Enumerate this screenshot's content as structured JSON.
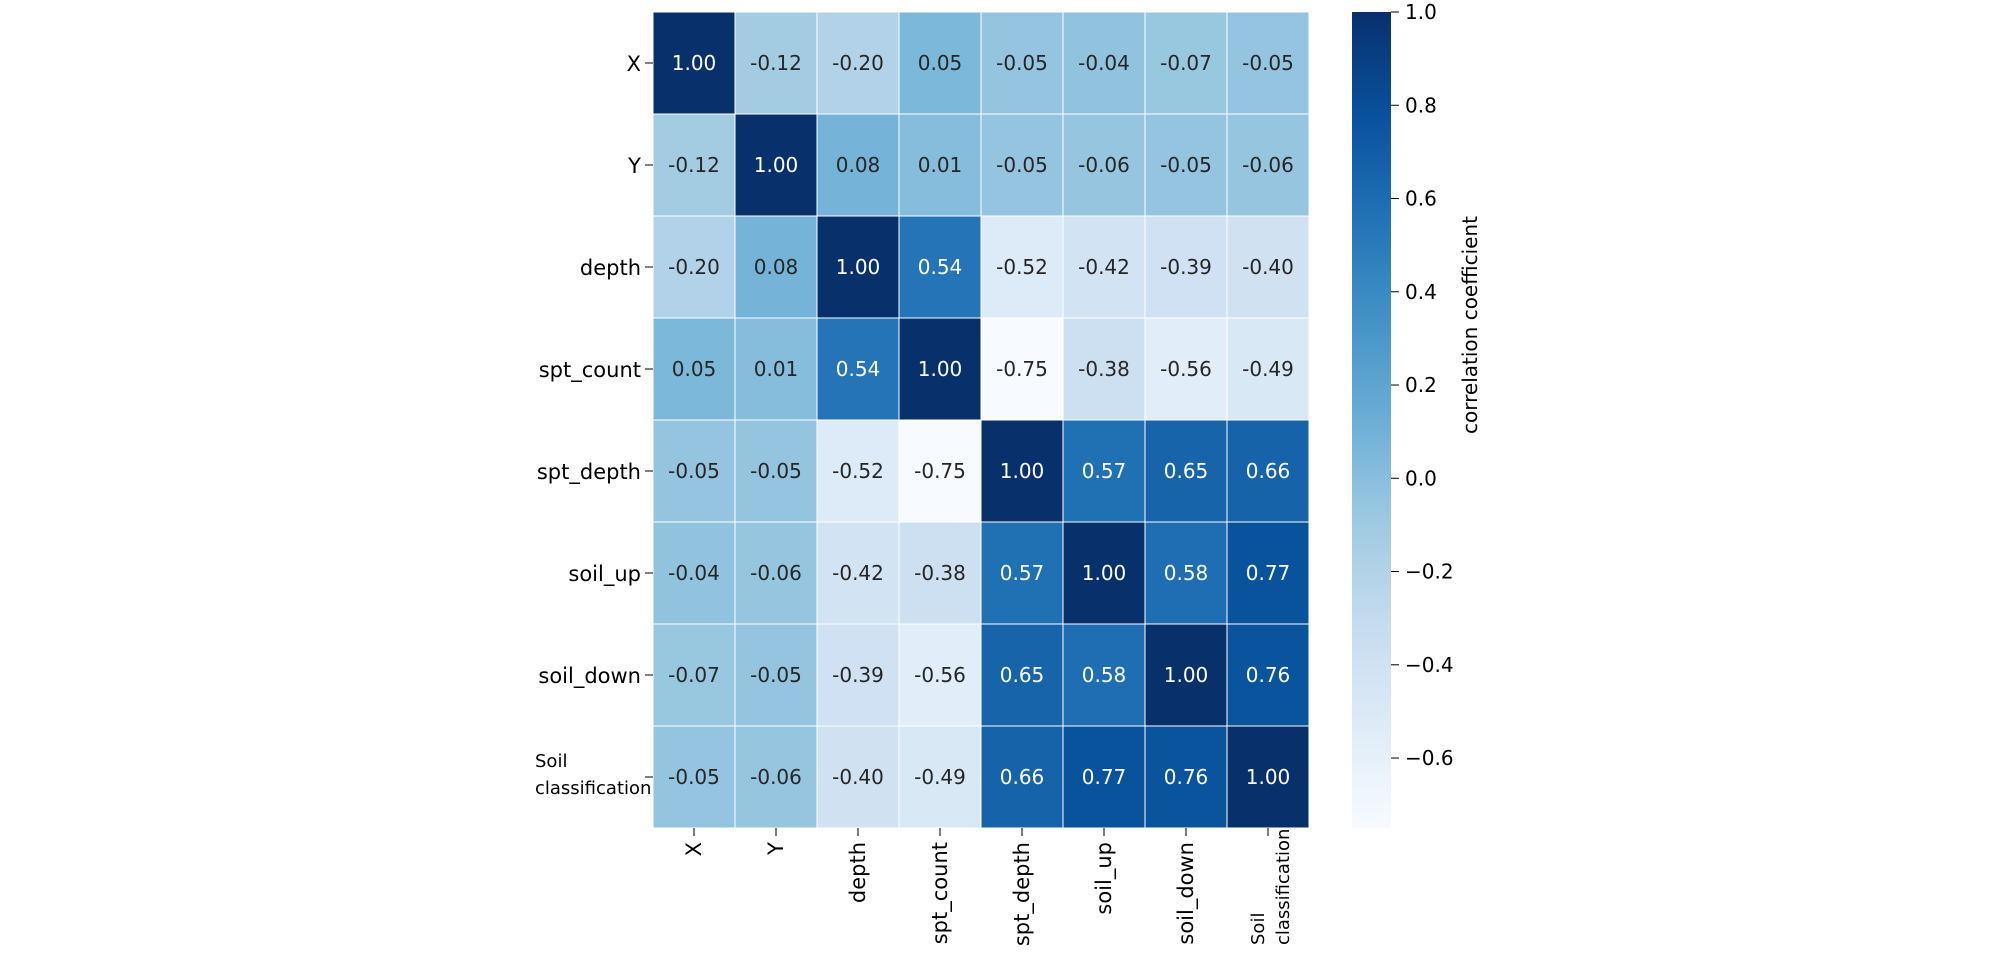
{
  "chart_data": {
    "type": "heatmap",
    "title": "",
    "xlabel": "",
    "ylabel": "",
    "row_labels": [
      [
        "X"
      ],
      [
        "Y"
      ],
      [
        "depth"
      ],
      [
        "spt_count"
      ],
      [
        "spt_depth"
      ],
      [
        "soil_up"
      ],
      [
        "soil_down"
      ],
      [
        "Soil",
        "classification"
      ]
    ],
    "col_labels": [
      [
        "X"
      ],
      [
        "Y"
      ],
      [
        "depth"
      ],
      [
        "spt_count"
      ],
      [
        "spt_depth"
      ],
      [
        "soil_up"
      ],
      [
        "soil_down"
      ],
      [
        "Soil",
        "classification"
      ]
    ],
    "values": [
      [
        1.0,
        -0.12,
        -0.2,
        0.05,
        -0.05,
        -0.04,
        -0.07,
        -0.05
      ],
      [
        -0.12,
        1.0,
        0.08,
        0.01,
        -0.05,
        -0.06,
        -0.05,
        -0.06
      ],
      [
        -0.2,
        0.08,
        1.0,
        0.54,
        -0.52,
        -0.42,
        -0.39,
        -0.4
      ],
      [
        0.05,
        0.01,
        0.54,
        1.0,
        -0.75,
        -0.38,
        -0.56,
        -0.49
      ],
      [
        -0.05,
        -0.05,
        -0.52,
        -0.75,
        1.0,
        0.57,
        0.65,
        0.66
      ],
      [
        -0.04,
        -0.06,
        -0.42,
        -0.38,
        0.57,
        1.0,
        0.58,
        0.77
      ],
      [
        -0.07,
        -0.05,
        -0.39,
        -0.56,
        0.65,
        0.58,
        1.0,
        0.76
      ],
      [
        -0.05,
        -0.06,
        -0.4,
        -0.49,
        0.66,
        0.77,
        0.76,
        1.0
      ]
    ],
    "value_format": "0.00",
    "colorscale": {
      "name": "Blues",
      "vmin": -0.75,
      "vmax": 1.0,
      "label": "correlation coefficient",
      "ticks": [
        1.0,
        0.8,
        0.6,
        0.4,
        0.2,
        0.0,
        -0.2,
        -0.4,
        -0.6
      ],
      "tick_labels": [
        "1.0",
        "0.8",
        "0.6",
        "0.4",
        "0.2",
        "0.0",
        "−0.2",
        "−0.4",
        "−0.6"
      ]
    },
    "grid": true,
    "colors": {
      "text_dark": "#262626",
      "text_light": "#ffffff",
      "cell_border": "#ffffff",
      "axis_text": "#000000"
    }
  }
}
